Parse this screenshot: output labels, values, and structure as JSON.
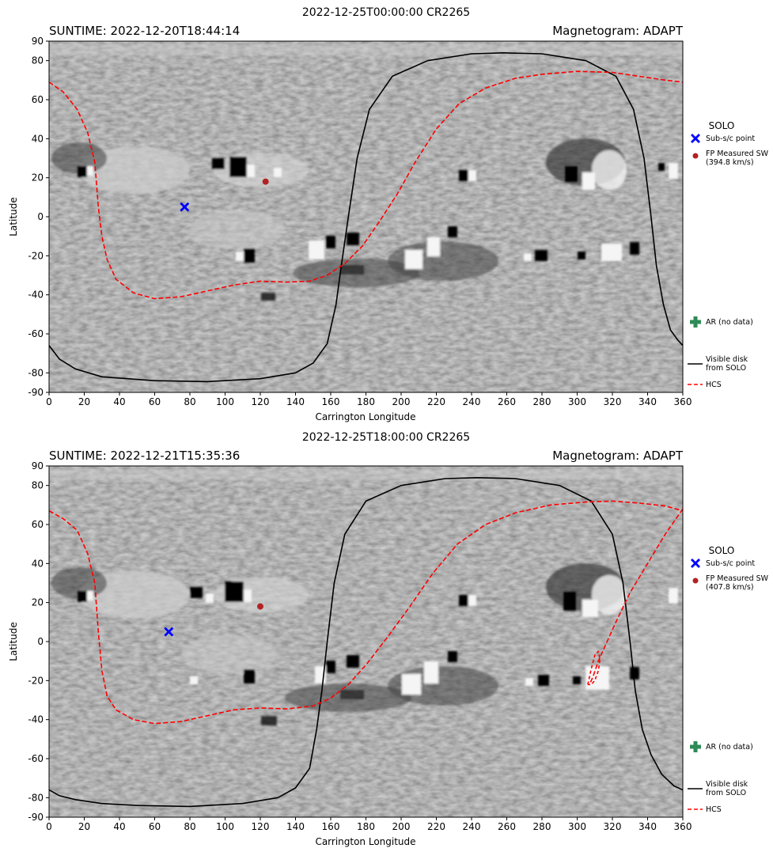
{
  "figure": {
    "colors": {
      "disk": "#000000",
      "hcs": "#ff0000",
      "subsc": "#0000ff",
      "fp": "#b22222",
      "ar": "#2e8b57"
    }
  },
  "chart_data": [
    {
      "type": "line",
      "title": "2022-12-25T00:00:00 CR2265",
      "left_header": "SUNTIME: 2022-12-20T18:44:14",
      "right_header": "Magnetogram: ADAPT",
      "xlabel": "Carrington Longitude",
      "ylabel": "Latitude",
      "xlim": [
        0,
        360
      ],
      "ylim": [
        -90,
        90
      ],
      "xticks": [
        0,
        20,
        40,
        60,
        80,
        100,
        120,
        140,
        160,
        180,
        200,
        220,
        240,
        260,
        280,
        300,
        320,
        340,
        360
      ],
      "yticks": [
        -90,
        -80,
        -60,
        -40,
        -20,
        0,
        20,
        40,
        60,
        80,
        90
      ],
      "background": "ADAPT magnetogram (grayscale)",
      "legend": {
        "title": "SOLO",
        "entries": [
          {
            "key": "subsc",
            "label": "Sub-s/c point"
          },
          {
            "key": "fp",
            "label": "FP Measured SW",
            "label2": "(394.8 km/s)"
          },
          {
            "key": "ar",
            "label": "AR (no data)"
          },
          {
            "key": "disk",
            "label": "Visible disk",
            "label2": "from SOLO"
          },
          {
            "key": "hcs",
            "label": "HCS"
          }
        ]
      },
      "points": {
        "subsc": {
          "x": 77,
          "y": 5
        },
        "fp": {
          "x": 123,
          "y": 18
        }
      },
      "series": [
        {
          "name": "Visible disk from SOLO",
          "style": "solid",
          "color_key": "disk",
          "x": [
            0,
            6,
            15,
            30,
            60,
            90,
            120,
            140,
            150,
            158,
            163,
            166,
            170,
            175,
            182,
            195,
            215,
            240,
            258,
            280,
            305,
            322,
            332,
            338,
            342,
            345,
            349,
            353,
            357,
            360
          ],
          "y": [
            -66,
            -73,
            -78,
            -82,
            -84,
            -84.5,
            -83,
            -80,
            -75,
            -65,
            -45,
            -25,
            0,
            30,
            55,
            72,
            80,
            83.5,
            84,
            83.5,
            80,
            72,
            55,
            30,
            0,
            -25,
            -45,
            -58,
            -63,
            -66
          ]
        },
        {
          "name": "HCS",
          "style": "dashed",
          "color_key": "hcs",
          "x": [
            0,
            8,
            16,
            22,
            26,
            28,
            30,
            33,
            38,
            48,
            60,
            75,
            90,
            105,
            120,
            135,
            148,
            158,
            168,
            178,
            188,
            198,
            208,
            220,
            233,
            248,
            265,
            280,
            300,
            320,
            335,
            350,
            360
          ],
          "y": [
            69,
            64,
            55,
            43,
            28,
            5,
            -10,
            -22,
            -32,
            -39,
            -42,
            -41,
            -38,
            -35,
            -33,
            -33.5,
            -33,
            -30,
            -24,
            -15,
            -2,
            12,
            28,
            45,
            58,
            66,
            71,
            73,
            74.5,
            74,
            72,
            70,
            69
          ]
        }
      ]
    },
    {
      "type": "line",
      "title": "2022-12-25T18:00:00 CR2265",
      "left_header": "SUNTIME: 2022-12-21T15:35:36",
      "right_header": "Magnetogram: ADAPT",
      "xlabel": "Carrington Longitude",
      "ylabel": "Latitude",
      "xlim": [
        0,
        360
      ],
      "ylim": [
        -90,
        90
      ],
      "xticks": [
        0,
        20,
        40,
        60,
        80,
        100,
        120,
        140,
        160,
        180,
        200,
        220,
        240,
        260,
        280,
        300,
        320,
        340,
        360
      ],
      "yticks": [
        -90,
        -80,
        -60,
        -40,
        -20,
        0,
        20,
        40,
        60,
        80,
        90
      ],
      "background": "ADAPT magnetogram (grayscale)",
      "legend": {
        "title": "SOLO",
        "entries": [
          {
            "key": "subsc",
            "label": "Sub-s/c point"
          },
          {
            "key": "fp",
            "label": "FP Measured SW",
            "label2": "(407.8 km/s)"
          },
          {
            "key": "ar",
            "label": "AR (no data)"
          },
          {
            "key": "disk",
            "label": "Visible disk",
            "label2": "from SOLO"
          },
          {
            "key": "hcs",
            "label": "HCS"
          }
        ]
      },
      "points": {
        "subsc": {
          "x": 68,
          "y": 5
        },
        "fp": {
          "x": 120,
          "y": 18
        }
      },
      "series": [
        {
          "name": "Visible disk from SOLO",
          "style": "solid",
          "color_key": "disk",
          "x": [
            0,
            6,
            15,
            30,
            50,
            80,
            110,
            130,
            140,
            148,
            152,
            155,
            158,
            162,
            168,
            180,
            200,
            225,
            243,
            265,
            290,
            308,
            320,
            326,
            330,
            333,
            337,
            342,
            348,
            355,
            360
          ],
          "y": [
            -76,
            -79,
            -81,
            -83,
            -84,
            -84.5,
            -83,
            -80,
            -75,
            -65,
            -45,
            -25,
            0,
            30,
            55,
            72,
            80,
            83.5,
            84,
            83.5,
            80,
            72,
            55,
            30,
            0,
            -25,
            -45,
            -58,
            -68,
            -74,
            -76
          ]
        },
        {
          "name": "HCS",
          "style": "dashed",
          "color_key": "hcs",
          "x": [
            0,
            8,
            16,
            22,
            26,
            28,
            30,
            33,
            38,
            48,
            60,
            75,
            90,
            105,
            120,
            135,
            150,
            160,
            170,
            180,
            192,
            205,
            218,
            232,
            248,
            265,
            285,
            305,
            320,
            335,
            350,
            360
          ],
          "y": [
            67,
            63,
            57,
            45,
            30,
            5,
            -15,
            -28,
            -35,
            -40,
            -42,
            -41,
            -38,
            -35,
            -34,
            -34.5,
            -33,
            -29,
            -22,
            -12,
            2,
            18,
            35,
            50,
            60,
            66,
            70,
            71.5,
            72,
            71,
            69.5,
            67
          ]
        },
        {
          "name": "HCS",
          "style": "dashed",
          "color_key": "hcs",
          "x": [
            360,
            350,
            340,
            330,
            322,
            316,
            312,
            309,
            307
          ],
          "y": [
            68,
            55,
            40,
            25,
            10,
            -2,
            -10,
            -18,
            -22
          ]
        },
        {
          "name": "HCS",
          "style": "dashed",
          "color_key": "hcs",
          "x": [
            306,
            308,
            310,
            312,
            313,
            312,
            310,
            308,
            306
          ],
          "y": [
            -22,
            -14,
            -7,
            -5,
            -9,
            -15,
            -20,
            -22,
            -22
          ]
        }
      ]
    }
  ]
}
